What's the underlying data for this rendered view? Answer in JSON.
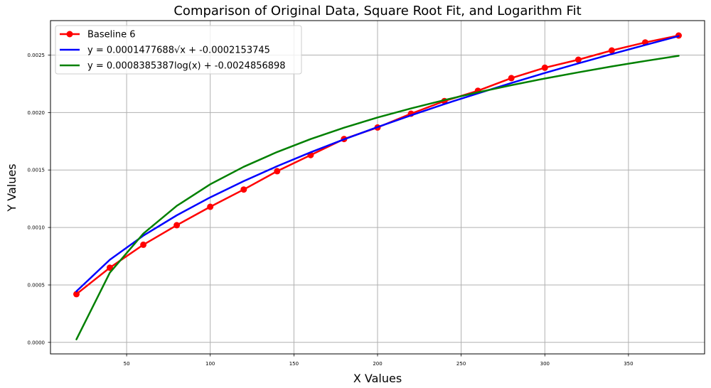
{
  "chart_data": {
    "type": "line",
    "title": "Comparison of Original Data, Square Root Fit, and Logarithm Fit",
    "xlabel": "X Values",
    "ylabel": "Y Values",
    "xlim": [
      4.5,
      395.5
    ],
    "ylim": [
      -0.0001,
      0.0028
    ],
    "xticks": [
      50,
      100,
      150,
      200,
      250,
      300,
      350
    ],
    "yticks": [
      0.0,
      0.0005,
      0.001,
      0.0015,
      0.002,
      0.0025
    ],
    "ytick_labels": [
      "0.0000",
      "0.0005",
      "0.0010",
      "0.0015",
      "0.0020",
      "0.0025"
    ],
    "grid": true,
    "legend_position": "top-left",
    "series": [
      {
        "name": "Baseline 6",
        "color": "#ff0000",
        "markers": true,
        "x": [
          20,
          40,
          60,
          80,
          100,
          120,
          140,
          160,
          180,
          200,
          220,
          240,
          260,
          280,
          300,
          320,
          340,
          360,
          380
        ],
        "y": [
          0.00042,
          0.00065,
          0.00085,
          0.00102,
          0.00118,
          0.00133,
          0.00149,
          0.00163,
          0.00177,
          0.00187,
          0.00199,
          0.0021,
          0.00219,
          0.0023,
          0.00239,
          0.00246,
          0.00254,
          0.00261,
          0.00267
        ]
      },
      {
        "name": "y = 0.0001477688√x + -0.0002153745",
        "color": "#0000ff",
        "markers": false,
        "x": [
          20,
          40,
          60,
          80,
          100,
          120,
          140,
          160,
          180,
          200,
          220,
          240,
          260,
          280,
          300,
          320,
          340,
          360,
          380
        ],
        "y": [
          0.000445,
          0.000719,
          0.000929,
          0.001106,
          0.001262,
          0.001403,
          0.001533,
          0.001654,
          0.001767,
          0.001874,
          0.001976,
          0.002074,
          0.002167,
          0.002257,
          0.002344,
          0.002428,
          0.002509,
          0.002588,
          0.002665
        ]
      },
      {
        "name": "y = 0.0008385387log(x) + -0.0024856898",
        "color": "#008000",
        "markers": false,
        "x": [
          20,
          40,
          60,
          80,
          100,
          120,
          140,
          160,
          180,
          200,
          220,
          240,
          260,
          280,
          300,
          320,
          340,
          360,
          380
        ],
        "y": [
          2.6e-05,
          0.000607,
          0.000947,
          0.001188,
          0.001376,
          0.001528,
          0.001657,
          0.001769,
          0.001868,
          0.001957,
          0.002036,
          0.002109,
          0.002176,
          0.002238,
          0.002296,
          0.00235,
          0.002401,
          0.002449,
          0.002494
        ]
      }
    ]
  }
}
